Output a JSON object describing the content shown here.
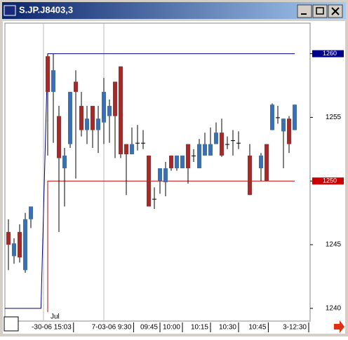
{
  "window_title": "S.JP.J8403,3",
  "chart_data": {
    "type": "candlestick",
    "annotation": "Jul",
    "up_color": "#3b6fb6",
    "down_color": "#a52a2a",
    "flat_color": "#000000",
    "x": [
      0,
      1,
      2,
      3,
      4,
      7,
      8,
      9,
      10,
      11,
      12,
      13,
      14,
      15,
      16,
      17,
      18,
      19,
      20,
      21,
      22,
      23,
      24,
      25,
      26,
      27,
      28,
      29,
      30,
      31,
      32,
      33,
      34,
      35,
      36,
      37,
      38,
      39,
      40,
      41,
      43,
      45,
      46,
      47,
      48,
      49,
      50,
      51
    ],
    "open": [
      1246.0,
      1244.1,
      1246.0,
      1243.0,
      1247.0,
      1259.8,
      1257.0,
      1255.1,
      1251.0,
      1252.9,
      1257.8,
      1255.9,
      1254.0,
      1255.9,
      1254.0,
      1254.6,
      1255.1,
      1257.8,
      1259.0,
      1252.9,
      1252.1,
      1253.0,
      1253.0,
      1252.0,
      1248.6,
      1250.0,
      1249.9,
      1252.0,
      1251.0,
      1251.0,
      1252.9,
      1252.0,
      1251.0,
      1252.0,
      1252.0,
      1252.9,
      1253.8,
      1252.9,
      1253.2,
      1253.0,
      1252.0,
      1251.0,
      1252.9,
      1254.0,
      1255.0,
      1253.9,
      1254.9,
      1254.0
    ],
    "high": [
      1247.0,
      1245.5,
      1246.6,
      1247.5,
      1248.0,
      1260.0,
      1260.0,
      1255.9,
      1252.6,
      1257.0,
      1258.7,
      1257.0,
      1255.9,
      1255.9,
      1255.9,
      1258.1,
      1256.4,
      1257.8,
      1259.0,
      1252.9,
      1254.2,
      1254.4,
      1254.0,
      1252.0,
      1249.5,
      1251.0,
      1251.5,
      1252.0,
      1252.0,
      1252.0,
      1252.9,
      1252.5,
      1253.3,
      1253.8,
      1254.2,
      1254.6,
      1254.9,
      1253.5,
      1254.0,
      1253.9,
      1252.9,
      1252.2,
      1252.9,
      1256.1,
      1255.9,
      1254.9,
      1255.1,
      1256.0
    ],
    "low": [
      1243.0,
      1243.5,
      1243.6,
      1242.8,
      1246.3,
      1252.0,
      1253.0,
      1246.0,
      1248.0,
      1252.6,
      1250.2,
      1253.5,
      1252.9,
      1252.6,
      1252.2,
      1252.9,
      1253.0,
      1251.8,
      1251.8,
      1248.9,
      1252.1,
      1252.4,
      1252.5,
      1248.0,
      1247.8,
      1249.0,
      1248.8,
      1250.8,
      1250.8,
      1251.0,
      1249.8,
      1251.5,
      1251.0,
      1252.0,
      1252.0,
      1252.9,
      1251.9,
      1252.5,
      1252.0,
      1252.5,
      1248.9,
      1250.0,
      1250.0,
      1254.0,
      1254.5,
      1251.0,
      1252.2,
      1254.0
    ],
    "close": [
      1245.0,
      1245.1,
      1244.0,
      1247.0,
      1248.0,
      1257.0,
      1258.7,
      1251.8,
      1252.0,
      1257.0,
      1257.0,
      1254.0,
      1254.9,
      1254.0,
      1254.9,
      1257.0,
      1255.9,
      1255.1,
      1252.1,
      1252.1,
      1252.9,
      1253.0,
      1253.0,
      1248.0,
      1248.6,
      1251.0,
      1251.0,
      1251.0,
      1252.0,
      1252.0,
      1251.0,
      1252.0,
      1252.9,
      1252.9,
      1252.9,
      1253.8,
      1252.0,
      1252.9,
      1253.2,
      1253.0,
      1248.9,
      1252.0,
      1250.0,
      1256.0,
      1255.0,
      1254.9,
      1252.9,
      1256.0
    ],
    "lines": [
      {
        "color": "#00008b",
        "x": [
          -0.625,
          5.8,
          7,
          51
        ],
        "values": [
          1240,
          1240,
          1260,
          1260
        ]
      },
      {
        "color": "#cc0000",
        "x": [
          7,
          7,
          51
        ],
        "values": [
          1239.7,
          1250,
          1250
        ]
      }
    ],
    "xgrid": [
      6.25,
      17
    ],
    "xlim": [
      -0.625,
      53.75
    ],
    "ylim": [
      1239.0,
      1262.4
    ],
    "yticks": [
      1240,
      1245,
      1250,
      1255,
      1260
    ],
    "xticks": [
      {
        "value": 11.6,
        "label": "-30-06 15:03"
      },
      {
        "value": 22.3,
        "label": "7-03-06  9:30"
      },
      {
        "value": 27,
        "label": "09:45"
      },
      {
        "value": 31,
        "label": "10:00"
      },
      {
        "value": 36,
        "label": "10:15"
      },
      {
        "value": 41,
        "label": "10:30"
      },
      {
        "value": 46.3,
        "label": "10:45"
      },
      {
        "value": 53.5,
        "label": "3-12:30"
      }
    ]
  }
}
